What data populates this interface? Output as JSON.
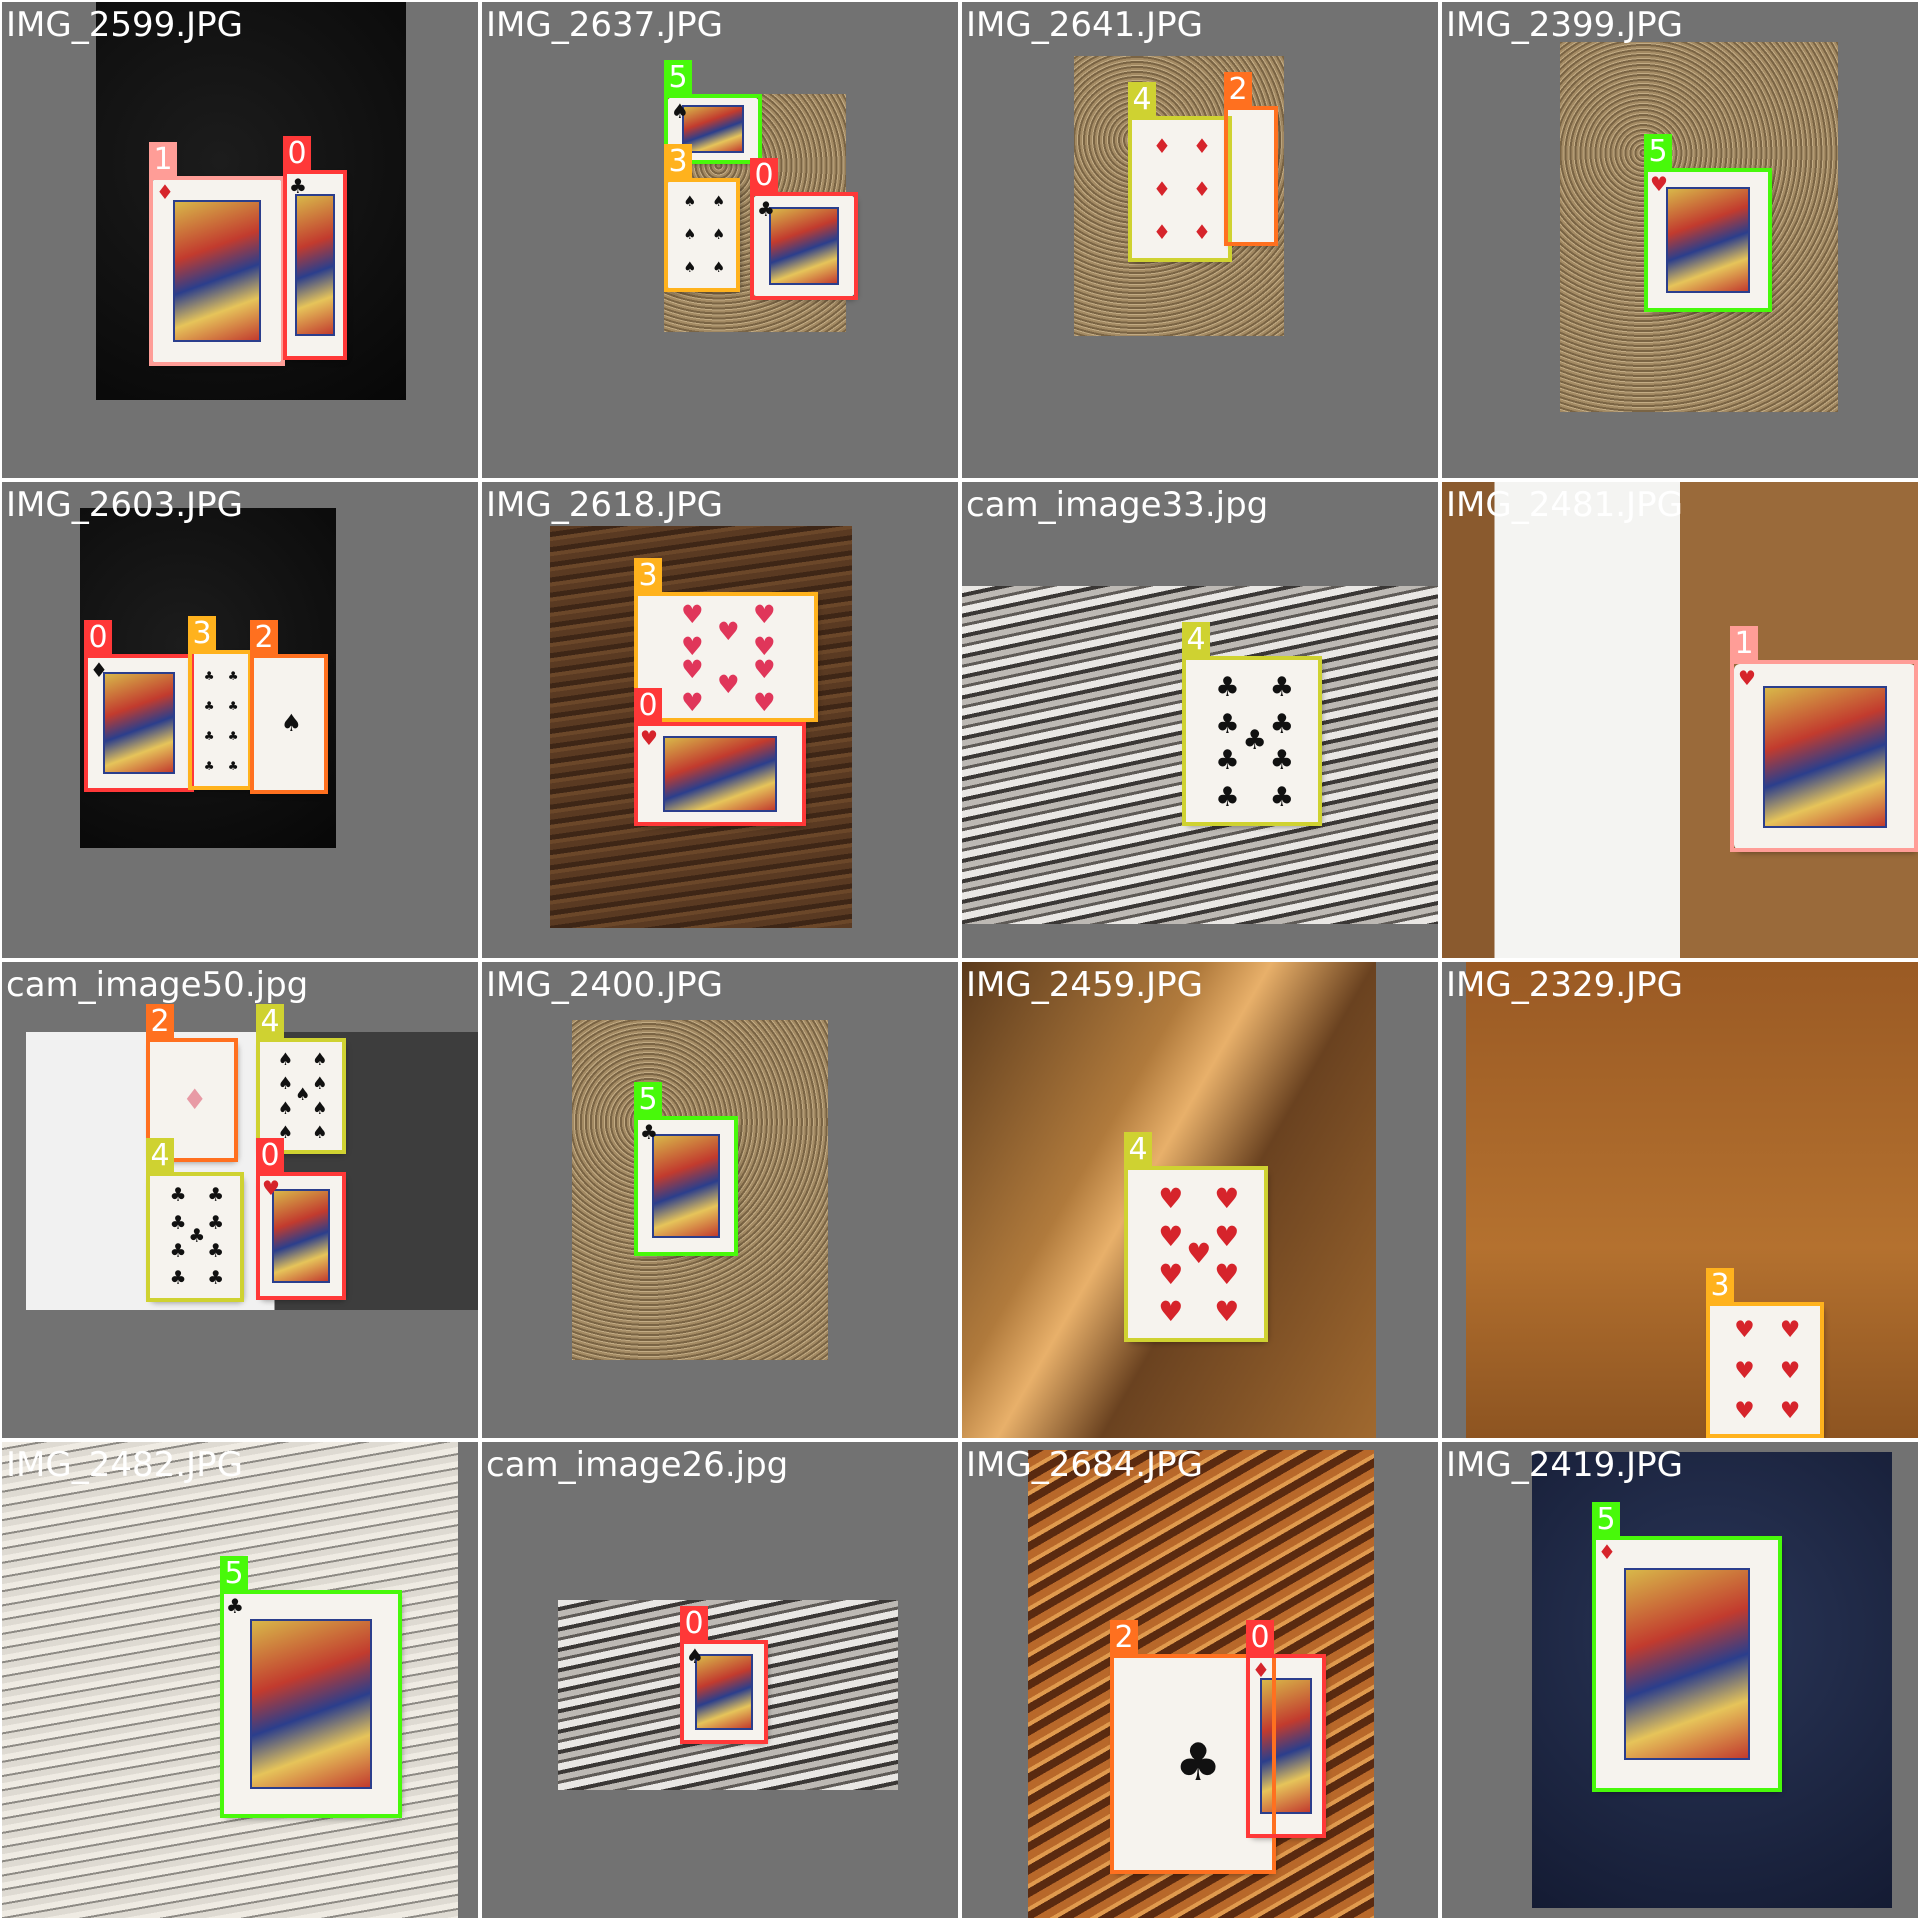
{
  "class_colors": {
    "0": "#ff3838",
    "1": "#ff9d97",
    "2": "#ff701f",
    "3": "#ffb21d",
    "4": "#cfd231",
    "5": "#48f90a"
  },
  "tiles": [
    {
      "filename": "IMG_2599.JPG",
      "background": "black-cloth",
      "labels": [
        {
          "class": "1"
        },
        {
          "class": "0"
        }
      ]
    },
    {
      "filename": "IMG_2637.JPG",
      "background": "carpet",
      "labels": [
        {
          "class": "5"
        },
        {
          "class": "3"
        },
        {
          "class": "0"
        }
      ]
    },
    {
      "filename": "IMG_2641.JPG",
      "background": "carpet",
      "labels": [
        {
          "class": "4"
        },
        {
          "class": "2"
        }
      ]
    },
    {
      "filename": "IMG_2399.JPG",
      "background": "carpet",
      "labels": [
        {
          "class": "5"
        }
      ]
    },
    {
      "filename": "IMG_2603.JPG",
      "background": "black-cloth",
      "labels": [
        {
          "class": "0"
        },
        {
          "class": "3"
        },
        {
          "class": "2"
        }
      ]
    },
    {
      "filename": "IMG_2618.JPG",
      "background": "dark-wood",
      "labels": [
        {
          "class": "3"
        },
        {
          "class": "0"
        }
      ]
    },
    {
      "filename": "cam_image33.jpg",
      "background": "grey-wood",
      "labels": [
        {
          "class": "4"
        }
      ]
    },
    {
      "filename": "IMG_2481.JPG",
      "background": "wood-envelope",
      "labels": [
        {
          "class": "1"
        }
      ]
    },
    {
      "filename": "cam_image50.jpg",
      "background": "white-paper",
      "labels": [
        {
          "class": "2"
        },
        {
          "class": "4"
        },
        {
          "class": "4"
        },
        {
          "class": "0"
        }
      ]
    },
    {
      "filename": "IMG_2400.JPG",
      "background": "carpet",
      "labels": [
        {
          "class": "5"
        }
      ]
    },
    {
      "filename": "IMG_2459.JPG",
      "background": "sunlit-wood",
      "labels": [
        {
          "class": "4"
        }
      ]
    },
    {
      "filename": "IMG_2329.JPG",
      "background": "table-items",
      "labels": [
        {
          "class": "3"
        }
      ]
    },
    {
      "filename": "IMG_2482.JPG",
      "background": "newspaper",
      "labels": [
        {
          "class": "5"
        }
      ]
    },
    {
      "filename": "cam_image26.jpg",
      "background": "grey-wood",
      "labels": [
        {
          "class": "0"
        }
      ]
    },
    {
      "filename": "IMG_2684.JPG",
      "background": "orange-wood",
      "labels": [
        {
          "class": "2"
        },
        {
          "class": "0"
        }
      ]
    },
    {
      "filename": "IMG_2419.JPG",
      "background": "navy-blanket",
      "labels": [
        {
          "class": "5"
        }
      ]
    }
  ]
}
